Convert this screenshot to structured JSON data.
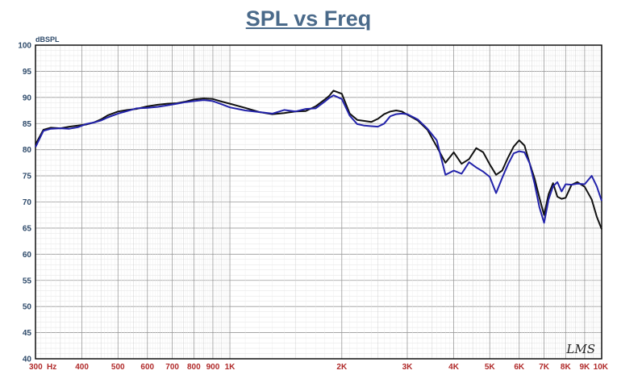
{
  "chart_data": {
    "type": "line",
    "title": "SPL vs Freq",
    "ylabel": "dBSPL",
    "xscale": "log",
    "xlim": [
      300,
      10000
    ],
    "ylim": [
      40,
      100
    ],
    "grid": true,
    "yticks": [
      "100",
      "95",
      "90",
      "85",
      "80",
      "75",
      "70",
      "65",
      "60",
      "55",
      "50",
      "45",
      "40"
    ],
    "xticks": [
      {
        "v": 300,
        "label": "300"
      },
      {
        "v": 400,
        "label": "400"
      },
      {
        "v": 500,
        "label": "500"
      },
      {
        "v": 600,
        "label": "600"
      },
      {
        "v": 700,
        "label": "700"
      },
      {
        "v": 800,
        "label": "800"
      },
      {
        "v": 900,
        "label": "900"
      },
      {
        "v": 1000,
        "label": "1K"
      },
      {
        "v": 2000,
        "label": "2K"
      },
      {
        "v": 3000,
        "label": "3K"
      },
      {
        "v": 4000,
        "label": "4K"
      },
      {
        "v": 5000,
        "label": "5K"
      },
      {
        "v": 6000,
        "label": "6K"
      },
      {
        "v": 7000,
        "label": "7K"
      },
      {
        "v": 8000,
        "label": "8K"
      },
      {
        "v": 9000,
        "label": "9K"
      },
      {
        "v": 10000,
        "label": "10K"
      }
    ],
    "hz_label": "Hz",
    "watermark": "LMS",
    "series": [
      {
        "color": "#111111",
        "x": [
          300,
          315,
          330,
          350,
          370,
          390,
          410,
          430,
          450,
          470,
          500,
          530,
          560,
          600,
          640,
          680,
          720,
          760,
          800,
          850,
          900,
          950,
          1000,
          1100,
          1200,
          1300,
          1400,
          1500,
          1600,
          1700,
          1800,
          1850,
          1900,
          2000,
          2100,
          2200,
          2300,
          2400,
          2500,
          2600,
          2700,
          2800,
          2900,
          3000,
          3200,
          3400,
          3600,
          3800,
          4000,
          4200,
          4400,
          4600,
          4800,
          5000,
          5200,
          5400,
          5600,
          5800,
          6000,
          6200,
          6400,
          6600,
          6800,
          7000,
          7200,
          7400,
          7600,
          7800,
          8000,
          8300,
          8600,
          9000,
          9400,
          9700,
          10000
        ],
        "y": [
          81,
          83.8,
          84.2,
          84.1,
          84.4,
          84.6,
          84.8,
          85.2,
          85.8,
          86.6,
          87.3,
          87.6,
          87.8,
          88.3,
          88.6,
          88.8,
          88.9,
          89.2,
          89.6,
          89.8,
          89.7,
          89.2,
          88.8,
          88.0,
          87.2,
          86.8,
          87.0,
          87.3,
          87.4,
          88.3,
          89.6,
          90.3,
          91.3,
          90.7,
          86.9,
          85.7,
          85.5,
          85.3,
          85.9,
          86.8,
          87.3,
          87.5,
          87.3,
          86.7,
          85.6,
          83.8,
          80.6,
          77.5,
          79.5,
          77.3,
          78.2,
          80.3,
          79.5,
          77.2,
          75.2,
          76.0,
          78.5,
          80.6,
          81.8,
          80.8,
          77.4,
          74.5,
          70.8,
          67.5,
          71.5,
          73.6,
          71.0,
          70.6,
          70.8,
          73.3,
          73.8,
          72.9,
          70.5,
          67.2,
          64.8
        ]
      },
      {
        "color": "#2222aa",
        "x": [
          300,
          315,
          330,
          350,
          370,
          390,
          410,
          430,
          450,
          470,
          500,
          530,
          560,
          600,
          640,
          680,
          720,
          760,
          800,
          850,
          900,
          950,
          1000,
          1100,
          1200,
          1300,
          1400,
          1500,
          1600,
          1700,
          1800,
          1850,
          1900,
          2000,
          2100,
          2200,
          2300,
          2400,
          2500,
          2600,
          2700,
          2800,
          2900,
          3000,
          3200,
          3400,
          3600,
          3800,
          4000,
          4200,
          4400,
          4600,
          4800,
          5000,
          5200,
          5400,
          5600,
          5800,
          6000,
          6200,
          6400,
          6600,
          6800,
          7000,
          7200,
          7400,
          7600,
          7800,
          8000,
          8300,
          8600,
          9000,
          9400,
          9700,
          10000
        ],
        "y": [
          80.5,
          83.6,
          84.0,
          84.1,
          84.0,
          84.3,
          84.9,
          85.2,
          85.6,
          86.2,
          86.9,
          87.4,
          87.9,
          88.0,
          88.2,
          88.5,
          88.8,
          89.1,
          89.3,
          89.5,
          89.3,
          88.7,
          88.1,
          87.5,
          87.2,
          86.9,
          87.6,
          87.3,
          87.8,
          87.9,
          89.2,
          89.9,
          90.4,
          89.7,
          86.5,
          84.9,
          84.6,
          84.5,
          84.4,
          85.0,
          86.4,
          86.8,
          86.9,
          86.8,
          85.8,
          84.0,
          81.8,
          75.2,
          76.0,
          75.4,
          77.6,
          76.6,
          75.8,
          74.8,
          71.7,
          74.6,
          77.2,
          79.3,
          79.7,
          79.5,
          77.4,
          73.5,
          69.0,
          66.0,
          70.5,
          73.0,
          73.8,
          72.0,
          73.4,
          73.3,
          73.5,
          73.4,
          75.0,
          73.0,
          70.2
        ]
      }
    ]
  }
}
